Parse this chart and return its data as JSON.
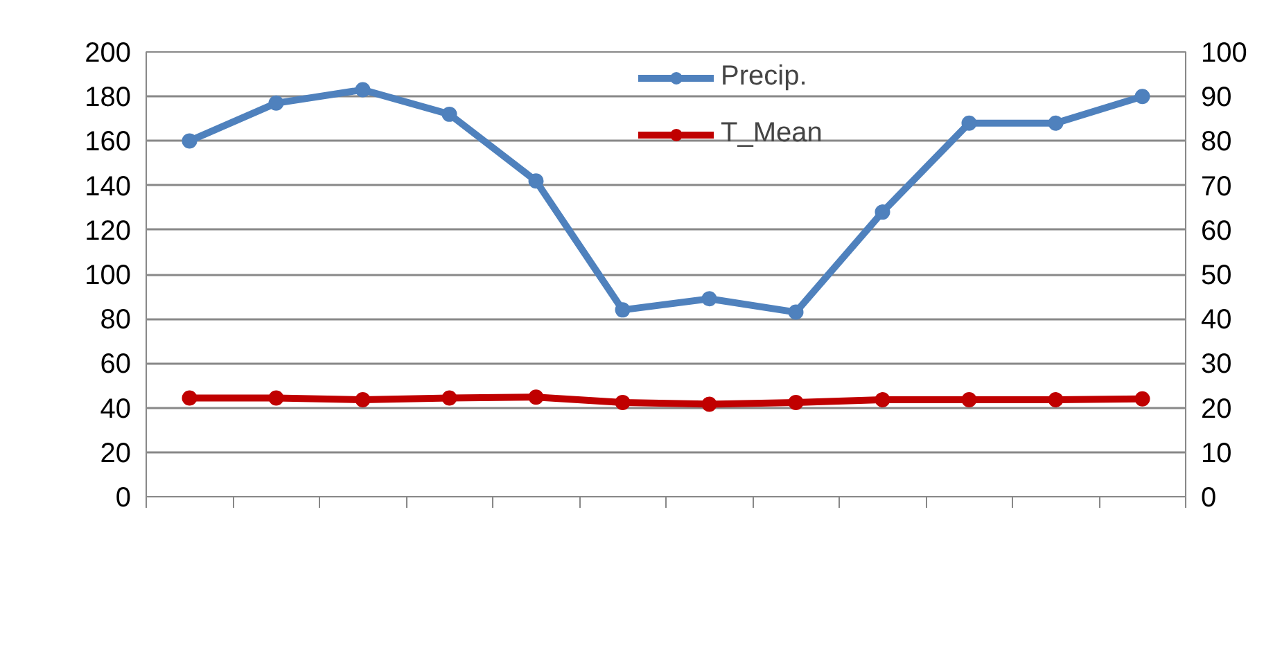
{
  "chart_data": {
    "type": "line",
    "categories": [
      null,
      null,
      null,
      null,
      null,
      null,
      null,
      null,
      null,
      null,
      null,
      null
    ],
    "series": [
      {
        "name": "Precip.",
        "color": "#4f81bd",
        "values": [
          160,
          177,
          183,
          172,
          142,
          84,
          89,
          83,
          128,
          168,
          168,
          180
        ]
      },
      {
        "name": "T_Mean",
        "color": "#c00000",
        "axis": "y2",
        "values": [
          22.2,
          22.2,
          21.8,
          22.2,
          22.4,
          21.2,
          20.8,
          21.2,
          21.8,
          21.8,
          21.8,
          22.0
        ]
      }
    ],
    "ylim": [
      0,
      200
    ],
    "yticks": [
      0,
      20,
      40,
      60,
      80,
      100,
      120,
      140,
      160,
      180,
      200
    ],
    "y2lim": [
      0,
      100
    ],
    "y2ticks": [
      0,
      10,
      20,
      30,
      40,
      50,
      60,
      70,
      80,
      90,
      100
    ],
    "grid": "y",
    "legend": "top",
    "marker": "circle",
    "line_style": "solid"
  }
}
